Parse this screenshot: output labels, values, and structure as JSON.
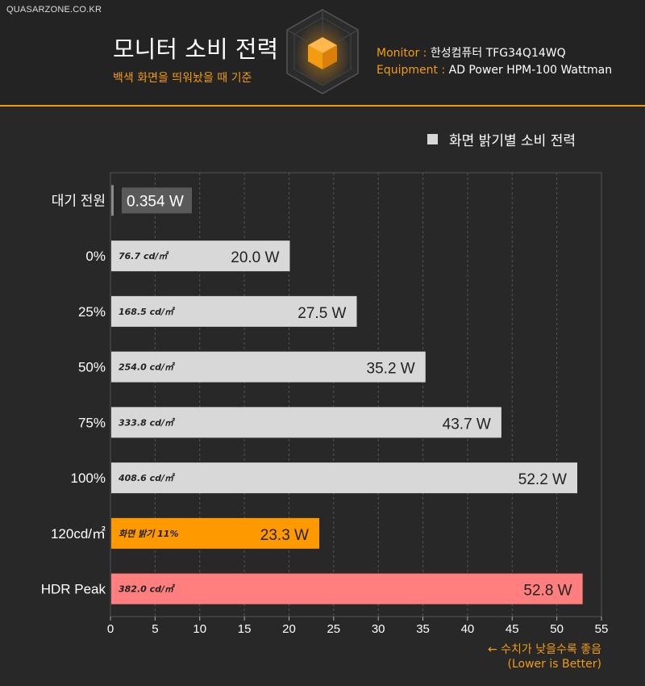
{
  "brand": "QUASARZONE.CO.KR",
  "header": {
    "title": "모니터 소비 전력",
    "subtitle": "백색 화면을 띄워놨을 때 기준",
    "monitor_key": "Monitor : ",
    "monitor_val": "한성컴퓨터 TFG34Q14WQ",
    "equipment_key": "Equipment : ",
    "equipment_val": "AD Power HPM-100 Wattman"
  },
  "footnote": {
    "line1": "← 수치가 낮을수록 좋음",
    "line2": "(Lower is Better)"
  },
  "colors": {
    "accent": "#f39c12",
    "bar_default": "#d8d8d8",
    "bar_standby": "#8a8a8a",
    "bar_orange": "#ff9900",
    "bar_hdr": "#ff7f7f",
    "background": "#282828"
  },
  "chart_data": {
    "type": "bar",
    "orientation": "horizontal",
    "title": "",
    "xlabel": "",
    "ylabel": "",
    "xlim": [
      0,
      55
    ],
    "xticks": [
      0,
      5,
      10,
      15,
      20,
      25,
      30,
      35,
      40,
      45,
      50,
      55
    ],
    "grid": true,
    "legend_position": "top-right",
    "series": [
      {
        "name": "화면 밝기별 소비 전력"
      }
    ],
    "categories": [
      "대기 전원",
      "0%",
      "25%",
      "50%",
      "75%",
      "100%",
      "120cd/㎡",
      "HDR Peak"
    ],
    "values": [
      0.354,
      20.0,
      27.5,
      35.2,
      43.7,
      52.2,
      23.3,
      52.8
    ],
    "value_labels": [
      "0.354 W",
      "20.0 W",
      "27.5 W",
      "35.2 W",
      "43.7 W",
      "52.2 W",
      "23.3 W",
      "52.8 W"
    ],
    "inner_labels": [
      "",
      "76.7 cd/㎡",
      "168.5 cd/㎡",
      "254.0 cd/㎡",
      "333.8 cd/㎡",
      "408.6 cd/㎡",
      "화면 밝기 11%",
      "382.0 cd/㎡"
    ],
    "bar_colors": [
      "#8a8a8a",
      "#d8d8d8",
      "#d8d8d8",
      "#d8d8d8",
      "#d8d8d8",
      "#d8d8d8",
      "#ff9900",
      "#ff7f7f"
    ]
  }
}
